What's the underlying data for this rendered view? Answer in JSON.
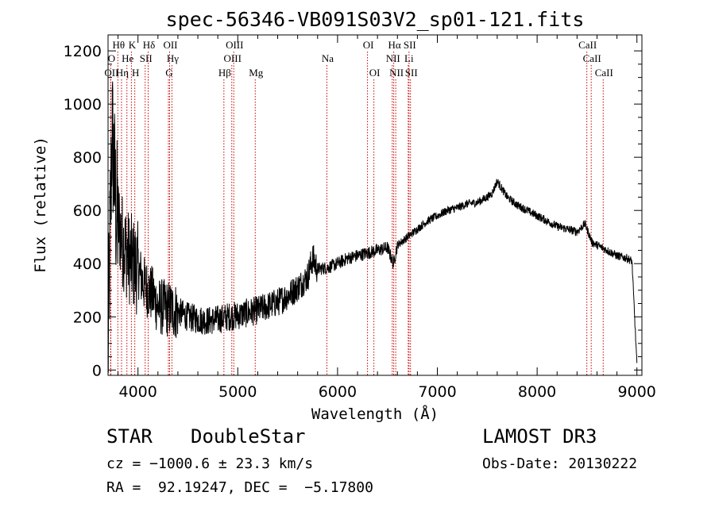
{
  "chart_data": {
    "type": "line",
    "title": "spec-56346-VB091S03V2_sp01-121.fits",
    "xlabel": "Wavelength (Å)",
    "ylabel": "Flux (relative)",
    "xlim": [
      3700,
      9050
    ],
    "ylim": [
      -20,
      1260
    ],
    "xticks": [
      4000,
      5000,
      6000,
      7000,
      8000,
      9000
    ],
    "yticks": [
      0,
      200,
      400,
      600,
      800,
      1000,
      1200
    ],
    "series": [
      {
        "name": "flux",
        "anchors_x": [
          3700,
          3720,
          3740,
          3760,
          3780,
          3800,
          3850,
          3900,
          3950,
          4000,
          4050,
          4100,
          4150,
          4200,
          4300,
          4400,
          4500,
          4600,
          4700,
          4800,
          4900,
          5000,
          5100,
          5200,
          5300,
          5400,
          5500,
          5600,
          5700,
          5750,
          5800,
          5900,
          6000,
          6100,
          6200,
          6300,
          6400,
          6500,
          6560,
          6600,
          6700,
          6800,
          6900,
          7000,
          7100,
          7200,
          7300,
          7400,
          7500,
          7550,
          7600,
          7650,
          7700,
          7800,
          7900,
          8000,
          8100,
          8200,
          8300,
          8400,
          8480,
          8550,
          8600,
          8700,
          8800,
          8900,
          8950,
          9000
        ],
        "anchors_y": [
          50,
          500,
          900,
          750,
          600,
          560,
          480,
          430,
          400,
          380,
          330,
          300,
          280,
          240,
          230,
          220,
          200,
          190,
          185,
          190,
          200,
          205,
          215,
          225,
          240,
          255,
          280,
          310,
          350,
          420,
          380,
          385,
          400,
          420,
          430,
          440,
          450,
          460,
          400,
          470,
          500,
          530,
          560,
          580,
          600,
          610,
          625,
          630,
          650,
          665,
          710,
          680,
          650,
          620,
          600,
          580,
          560,
          540,
          530,
          520,
          550,
          480,
          470,
          450,
          430,
          420,
          410,
          20
        ],
        "noise_ranges": [
          {
            "from": 3700,
            "to": 3800,
            "amplitude": 300
          },
          {
            "from": 3800,
            "to": 4000,
            "amplitude": 180
          },
          {
            "from": 4000,
            "to": 4400,
            "amplitude": 110
          },
          {
            "from": 4400,
            "to": 5700,
            "amplitude": 55
          },
          {
            "from": 5700,
            "to": 5800,
            "amplitude": 60
          },
          {
            "from": 5800,
            "to": 6600,
            "amplitude": 25
          },
          {
            "from": 6600,
            "to": 9050,
            "amplitude": 16
          }
        ]
      }
    ],
    "spectral_lines": [
      {
        "label": "Hθ",
        "x": 3798,
        "row": 1
      },
      {
        "label": "K",
        "x": 3934,
        "row": 1
      },
      {
        "label": "Hδ",
        "x": 4102,
        "row": 1
      },
      {
        "label": "OII",
        "x": 4317,
        "row": 1
      },
      {
        "label": "OIII",
        "x": 4960,
        "row": 1
      },
      {
        "label": "OI",
        "x": 6300,
        "row": 1
      },
      {
        "label": "Hα",
        "x": 6563,
        "row": 1
      },
      {
        "label": "SII",
        "x": 6716,
        "row": 1
      },
      {
        "label": "CaII",
        "x": 8498,
        "row": 1
      },
      {
        "label": "O",
        "x": 3727,
        "row": 2
      },
      {
        "label": "He",
        "x": 3889,
        "row": 2
      },
      {
        "label": "SII",
        "x": 4072,
        "row": 2
      },
      {
        "label": "Hγ",
        "x": 4340,
        "row": 2
      },
      {
        "label": "OIII",
        "x": 4940,
        "row": 2
      },
      {
        "label": "Na",
        "x": 5893,
        "row": 2
      },
      {
        "label": "NII",
        "x": 6548,
        "row": 2
      },
      {
        "label": "Li",
        "x": 6708,
        "row": 2
      },
      {
        "label": "CaII",
        "x": 8542,
        "row": 2
      },
      {
        "label": "OII",
        "x": 3727,
        "row": 3
      },
      {
        "label": "Hη",
        "x": 3835,
        "row": 3
      },
      {
        "label": "H",
        "x": 3968,
        "row": 3
      },
      {
        "label": "G",
        "x": 4305,
        "row": 3
      },
      {
        "label": "Hβ",
        "x": 4861,
        "row": 3
      },
      {
        "label": "Mg",
        "x": 5175,
        "row": 3
      },
      {
        "label": "OI",
        "x": 6364,
        "row": 3
      },
      {
        "label": "NII",
        "x": 6583,
        "row": 3
      },
      {
        "label": "SII",
        "x": 6731,
        "row": 3
      },
      {
        "label": "CaII",
        "x": 8662,
        "row": 3
      }
    ],
    "colors": {
      "line": "#000000",
      "marker": "#cc0000",
      "axes": "#000000",
      "background": "#ffffff"
    }
  },
  "info": {
    "class": "STAR",
    "subclass": "DoubleStar",
    "survey": "LAMOST DR3",
    "cz": "cz = −1000.6 ± 23.3 km/s",
    "obs_date": "Obs-Date: 20130222",
    "coords": "RA =  92.19247, DEC =  −5.17800"
  }
}
